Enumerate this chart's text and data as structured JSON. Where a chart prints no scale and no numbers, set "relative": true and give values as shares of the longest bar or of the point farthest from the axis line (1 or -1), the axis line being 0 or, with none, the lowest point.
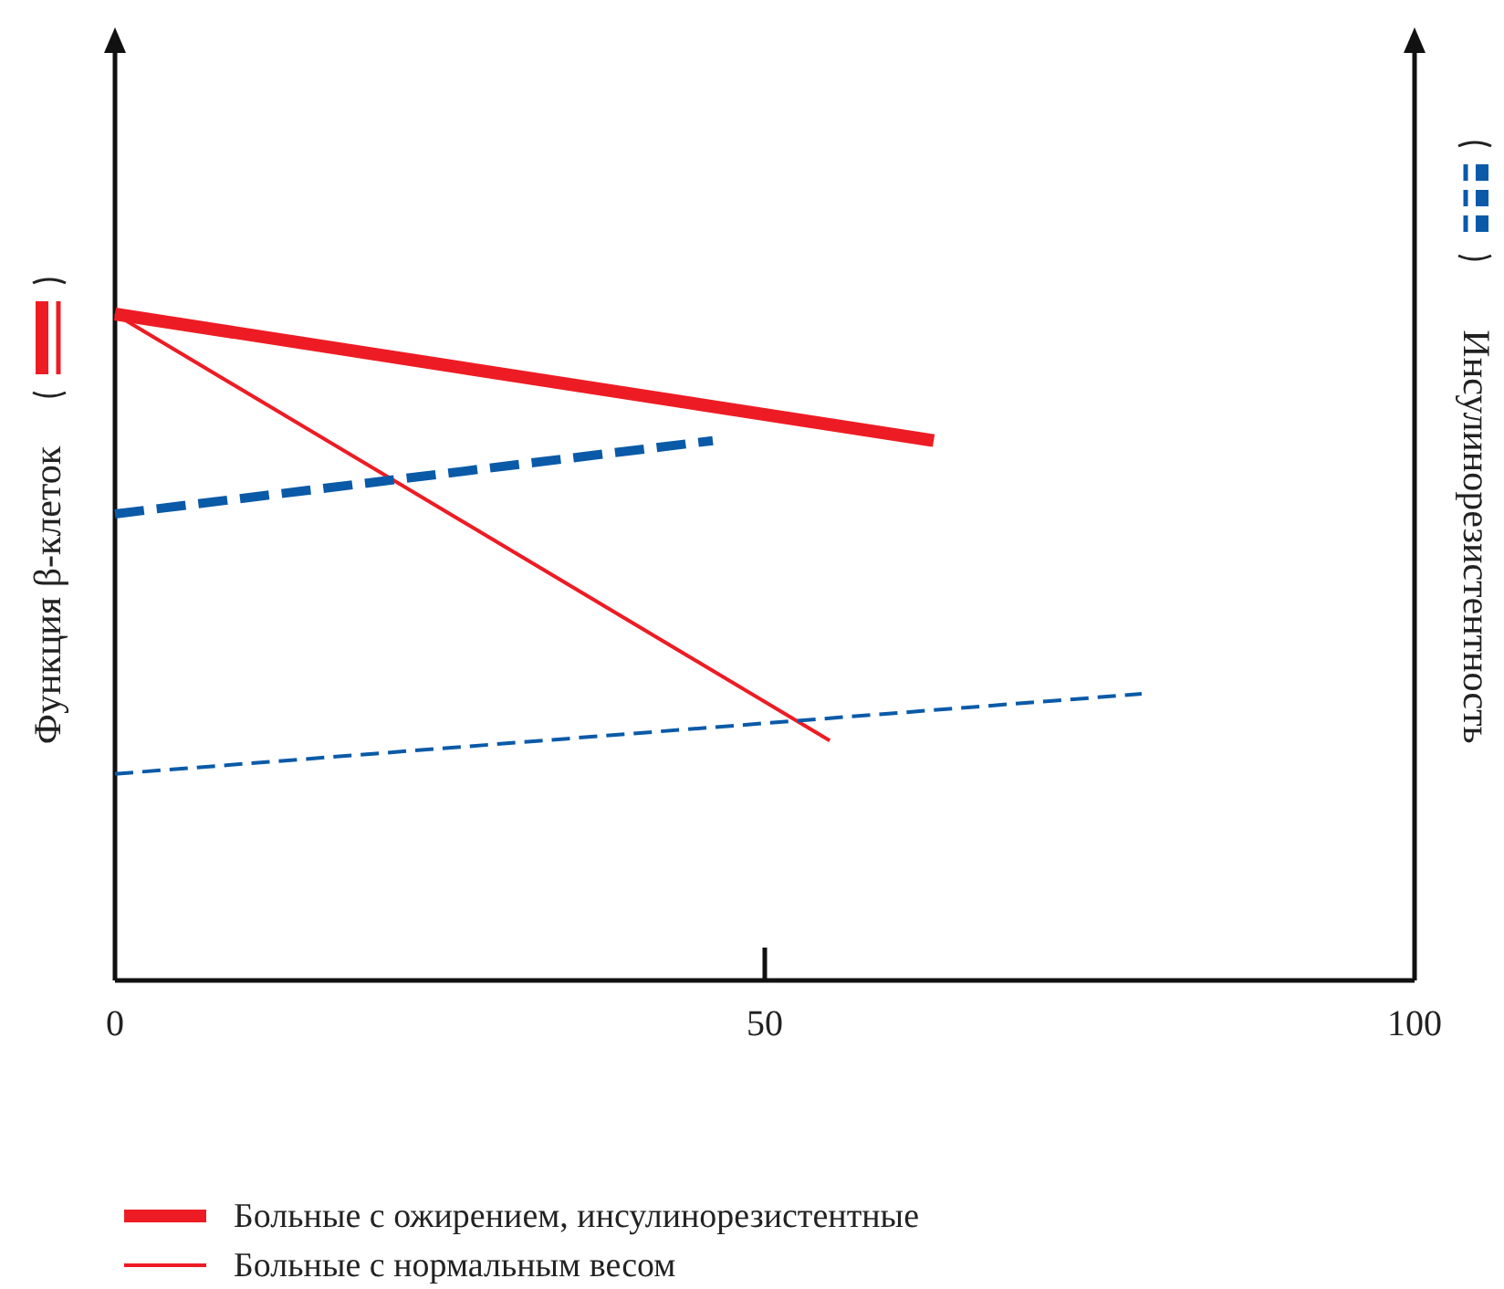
{
  "chart_data": {
    "type": "line",
    "relative": true,
    "ylabel": "Функция β-клеток",
    "y2label": "Инсулинорезистентность",
    "xlim": [
      0,
      100
    ],
    "xticks": [
      0,
      50,
      100
    ],
    "legend": "bottom left",
    "grid": false,
    "marker": "none",
    "series": [
      {
        "name": "Больные с ожирением, инсулинорезистентные",
        "color": "#ed1c24",
        "line_style": "solid",
        "x": [
          0,
          63
        ],
        "values": [
          1,
          0.81
        ]
      },
      {
        "name": "Больные с нормальным весом",
        "color": "#ed1c24",
        "line_style": "solid",
        "x": [
          0,
          55
        ],
        "values": [
          1,
          0.36
        ]
      },
      {
        "color": "#0a5aa8",
        "line_style": "dashed",
        "axis": "y2",
        "x": [
          0,
          46
        ],
        "values": [
          0.7,
          0.81
        ]
      },
      {
        "color": "#0a5aa8",
        "line_style": "dashed",
        "axis": "y2",
        "x": [
          0,
          79
        ],
        "values": [
          0.31,
          0.43
        ]
      }
    ]
  }
}
